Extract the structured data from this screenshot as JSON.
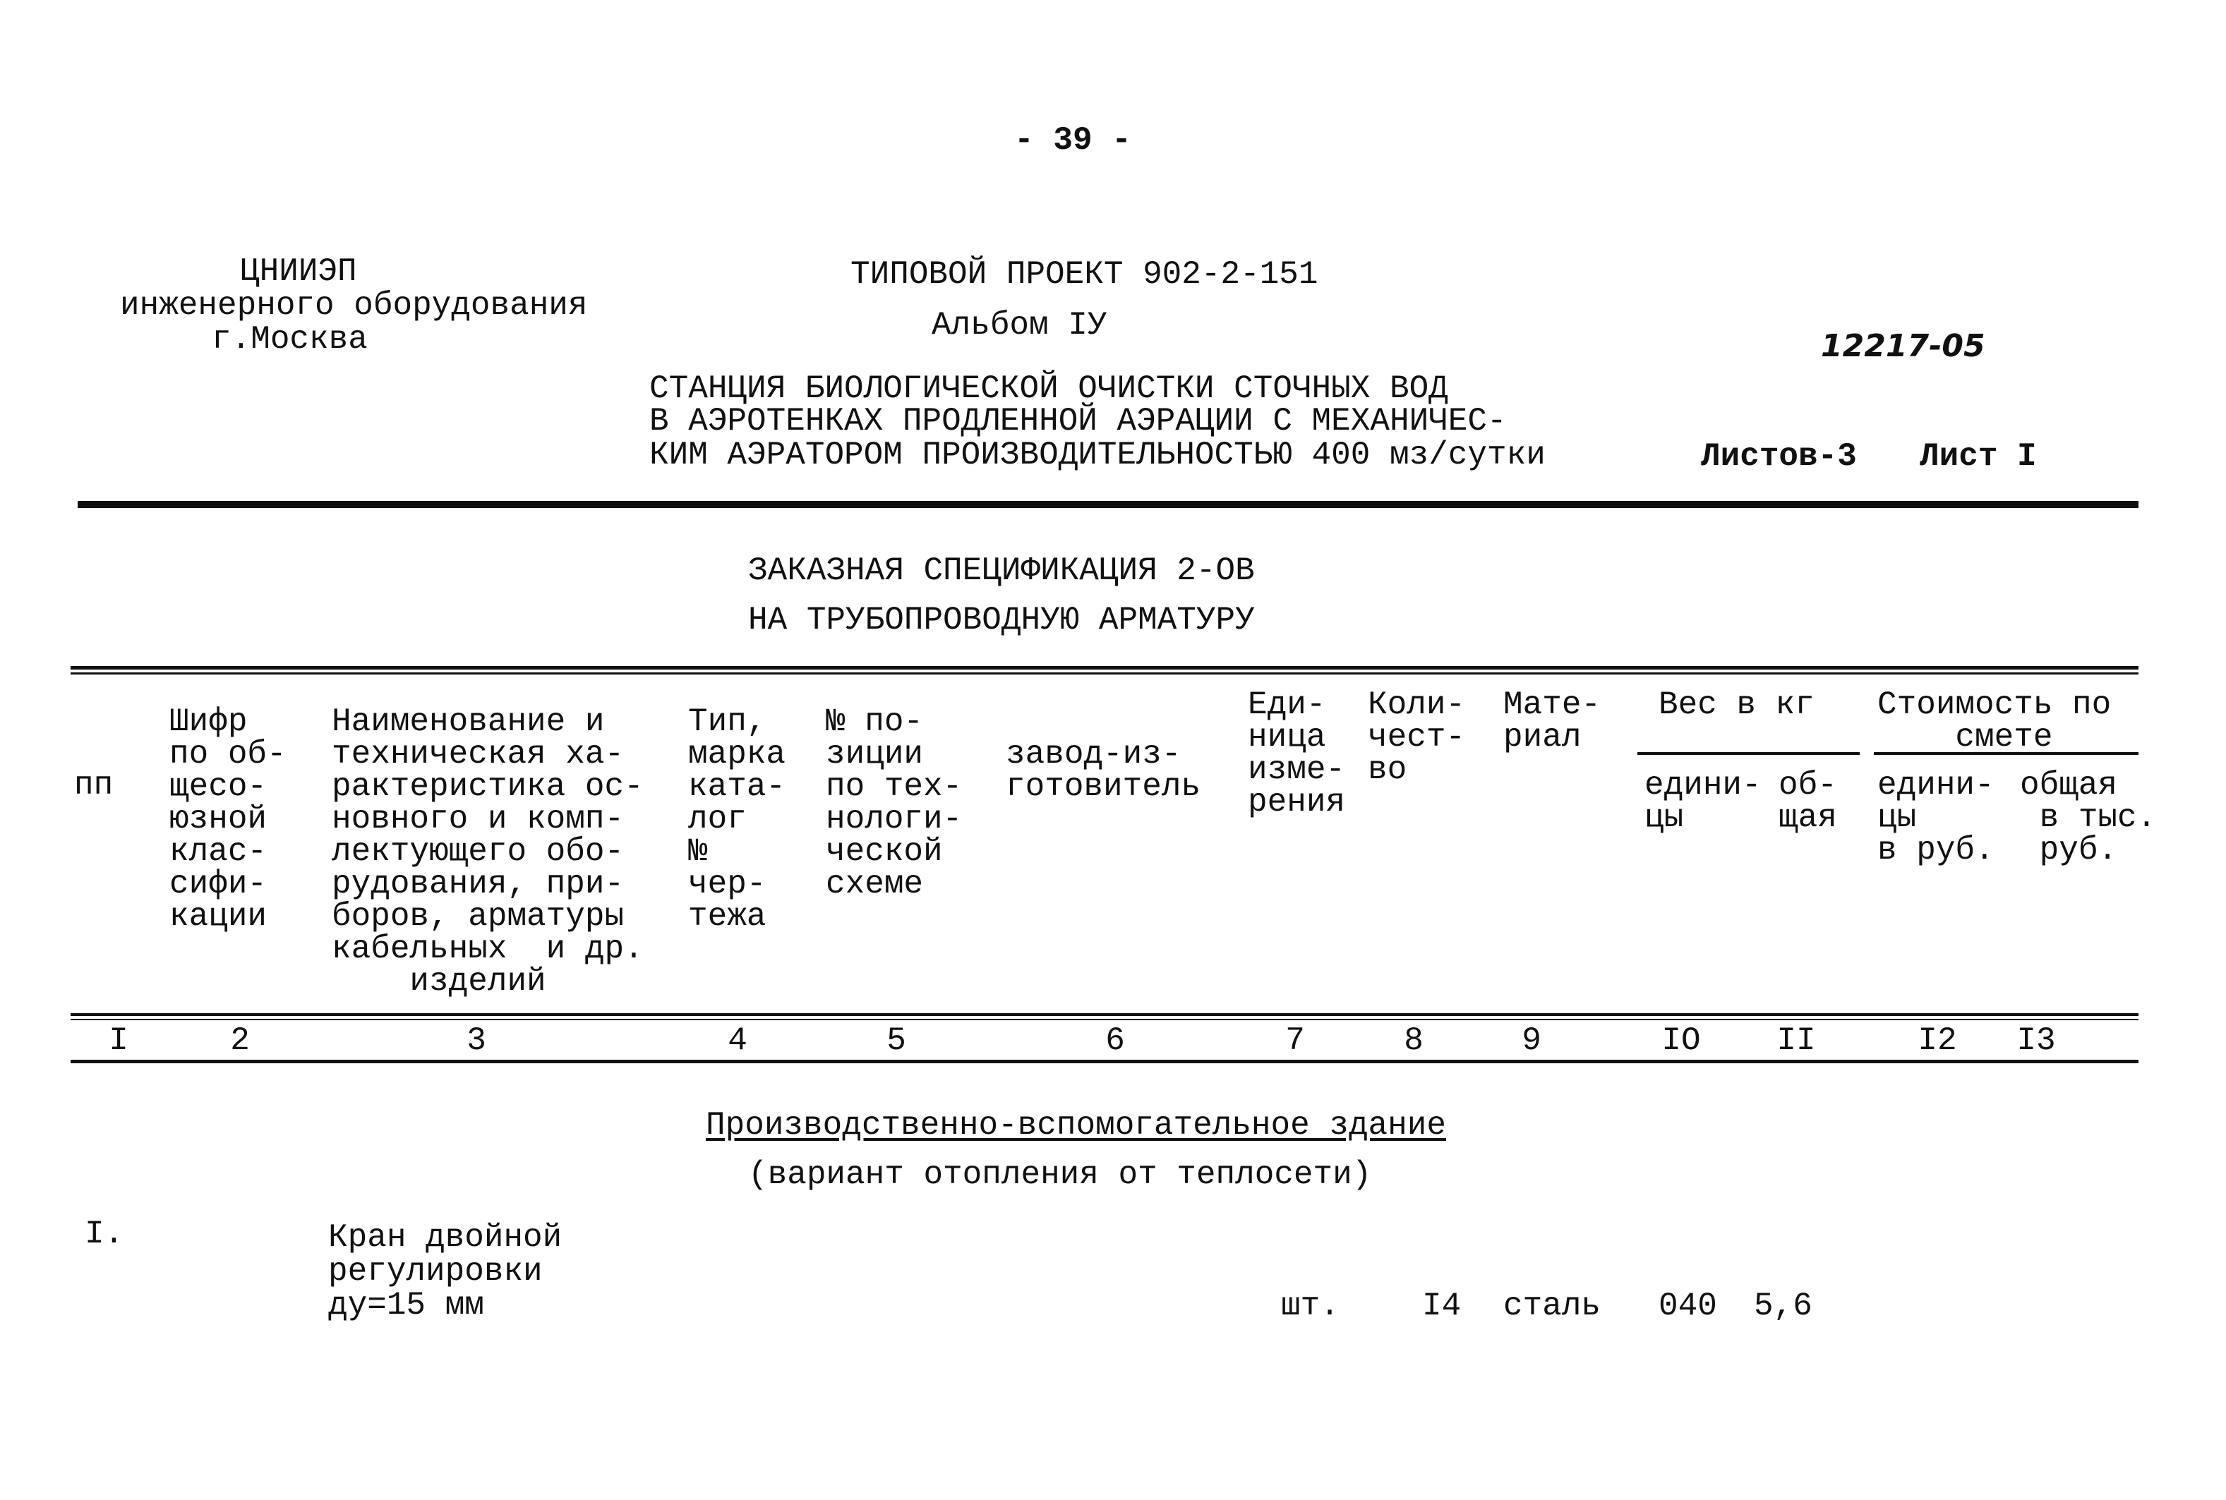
{
  "page_number": "- 39 -",
  "org": {
    "line1": "ЦНИИЭП",
    "line2": "инженерного оборудования",
    "line3": "г.Москва"
  },
  "project": {
    "title": "ТИПОВОЙ ПРОЕКТ 902-2-151",
    "album": "Альбом IУ"
  },
  "handwritten_code": "12217-05",
  "station_title": [
    "СТАНЦИЯ БИОЛОГИЧЕСКОЙ ОЧИСТКИ СТОЧНЫХ ВОД",
    "В АЭРОТЕНКАХ ПРОДЛЕННОЙ АЭРАЦИИ С МЕХАНИЧЕС-",
    "КИМ АЭРАТОРОМ ПРОИЗВОДИТЕЛЬНОСТЬЮ 400 мз/сутки"
  ],
  "sheets_total": "Листов-3",
  "sheet": "Лист I",
  "spec_title": [
    "ЗАКАЗНАЯ СПЕЦИФИКАЦИЯ 2-ОВ",
    "НА ТРУБОПРОВОДНУЮ АРМАТУРУ"
  ],
  "headers": {
    "col1": "пп",
    "col2": "Шифр\nпо об-\nщесо-\nюзной\nклас-\nсифи-\nкации",
    "col3": "Наименование и\nтехническая ха-\nрактеристика ос-\nновного и комп-\nлектующего обо-\nрудования, при-\nборов, арматуры\nкабельных  и др.\n    изделий",
    "col4": "Тип,\nмарка\nката-\nлог\n№\nчер-\nтежа",
    "col5": "№ по-\nзиции\nпо тех-\nнологи-\nческой\nсхеме",
    "col6": "завод-из-\nготовитель",
    "col7": "Еди-\nница\nизме-\nрения",
    "col8": "Коли-\nчест-\nво",
    "col9": "Мате-\nриал",
    "weight_group": "Вес в кг",
    "col10": "едини-\nцы",
    "col11": "об-\nщая",
    "cost_group": "Стоимость по\n    смете",
    "col12": "едини-\nцы\nв руб.",
    "col13": "общая\n в тыс.\n руб."
  },
  "column_numbers": [
    "I",
    "2",
    "3",
    "4",
    "5",
    "6",
    "7",
    "8",
    "9",
    "IO",
    "II",
    "I2",
    "I3"
  ],
  "section": {
    "title": "Производственно-вспомогательное здание",
    "subtitle": "(вариант отопления от теплосети)"
  },
  "rows": [
    {
      "num": "I.",
      "name": "Кран двойной\nрегулировки\nду=15 мм",
      "unit": "шт.",
      "qty": "I4",
      "material": "сталь",
      "unit_weight": "040",
      "total_weight": "5,6"
    }
  ]
}
